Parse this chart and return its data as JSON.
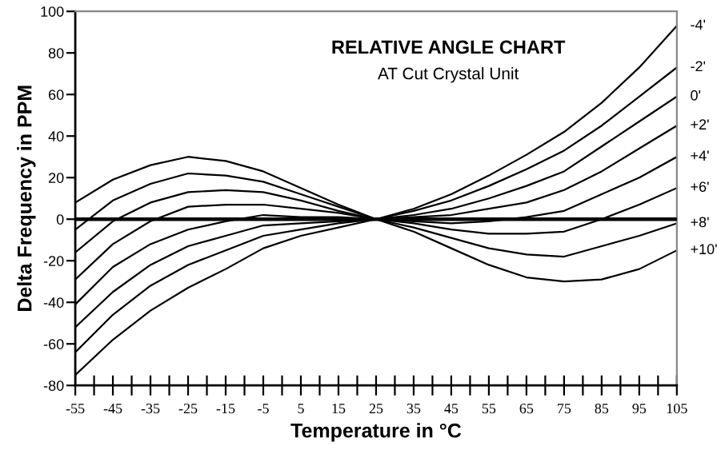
{
  "chart_data": {
    "type": "line",
    "title": "RELATIVE ANGLE CHART",
    "subtitle": "AT Cut Crystal Unit",
    "xlabel": "Temperature in °C",
    "ylabel": "Delta Frequency in PPM",
    "x": [
      -55,
      -45,
      -35,
      -25,
      -15,
      -5,
      5,
      15,
      25,
      35,
      45,
      55,
      65,
      75,
      85,
      95,
      105
    ],
    "series": [
      {
        "name": "-4'",
        "color": "#000000",
        "values": [
          8,
          19,
          26,
          30,
          28,
          23,
          15,
          7,
          0,
          5,
          12,
          21,
          31,
          42,
          56,
          73,
          93
        ]
      },
      {
        "name": "-2'",
        "color": "#000000",
        "values": [
          -5,
          9,
          17,
          22,
          21,
          18,
          12,
          6,
          0,
          4,
          9,
          16,
          24,
          33,
          45,
          59,
          73
        ]
      },
      {
        "name": "0'",
        "color": "#000000",
        "values": [
          -16,
          -1,
          8,
          13,
          14,
          13,
          9,
          4,
          0,
          2,
          5,
          10,
          16,
          23,
          35,
          47,
          59
        ]
      },
      {
        "name": "+2'",
        "color": "#000000",
        "values": [
          -29,
          -12,
          -1,
          6,
          7,
          7,
          5,
          3,
          0,
          1,
          2,
          5,
          8,
          14,
          23,
          34,
          45
        ]
      },
      {
        "name": "+4'",
        "color": "#000000",
        "values": [
          -41,
          -23,
          -12,
          -5,
          -1,
          2,
          1,
          1,
          0,
          -1,
          -2,
          -1,
          1,
          4,
          12,
          20,
          30
        ]
      },
      {
        "name": "+6'",
        "color": "#000000",
        "values": [
          -52,
          -35,
          -22,
          -13,
          -8,
          -3,
          -2,
          -1,
          0,
          -2,
          -5,
          -7,
          -7,
          -6,
          0,
          7,
          15
        ]
      },
      {
        "name": "+8'",
        "color": "#000000",
        "values": [
          -64,
          -46,
          -32,
          -22,
          -15,
          -8,
          -5,
          -2,
          0,
          -4,
          -9,
          -14,
          -17,
          -18,
          -13,
          -8,
          -2
        ]
      },
      {
        "name": "+10'",
        "color": "#000000",
        "values": [
          -75,
          -58,
          -44,
          -33,
          -24,
          -14,
          -8,
          -4,
          0,
          -6,
          -14,
          -22,
          -28,
          -30,
          -29,
          -24,
          -15
        ]
      }
    ],
    "xlim": [
      -55,
      105
    ],
    "xticks": [
      -55,
      {
        "value": -50,
        "label": null
      },
      -45,
      {
        "value": -40,
        "label": null
      },
      -35,
      {
        "value": -30,
        "label": null
      },
      -25,
      {
        "value": -20,
        "label": null
      },
      -15,
      {
        "value": -10,
        "label": null
      },
      -5,
      {
        "value": 0,
        "label": null
      },
      5,
      {
        "value": 10,
        "label": null
      },
      15,
      {
        "value": 20,
        "label": null
      },
      25,
      {
        "value": 30,
        "label": null
      },
      35,
      {
        "value": 40,
        "label": null
      },
      45,
      {
        "value": 50,
        "label": null
      },
      55,
      {
        "value": 60,
        "label": null
      },
      65,
      {
        "value": 70,
        "label": null
      },
      75,
      {
        "value": 80,
        "label": null
      },
      85,
      {
        "value": 90,
        "label": null
      },
      95,
      {
        "value": 100,
        "label": null
      },
      105
    ],
    "ylim": [
      -80,
      100
    ],
    "yticks": [
      -80,
      -60,
      -40,
      -20,
      0,
      20,
      40,
      60,
      80,
      100
    ],
    "ref_lines": [
      {
        "axis": "y",
        "value": 0,
        "color": "#000000"
      }
    ],
    "grid": false,
    "legend": false,
    "marker": "none",
    "line_style": "solid"
  }
}
